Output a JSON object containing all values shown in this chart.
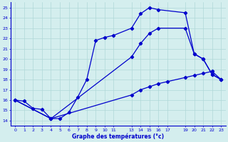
{
  "xlabel": "Graphe des températures (°c)",
  "bg_color": "#d4eeee",
  "line_color": "#0000cc",
  "grid_color": "#b0d8d8",
  "xlim": [
    -0.5,
    23.5
  ],
  "ylim": [
    13.5,
    25.5
  ],
  "yticks": [
    14,
    15,
    16,
    17,
    18,
    19,
    20,
    21,
    22,
    23,
    24,
    25
  ],
  "xtick_positions": [
    0,
    1,
    2,
    3,
    4,
    5,
    6,
    7,
    8,
    9,
    10,
    11,
    13,
    14,
    15,
    16,
    17,
    19,
    20,
    21,
    22,
    23
  ],
  "xtick_labels": [
    "0",
    "1",
    "2",
    "3",
    "4",
    "5",
    "6",
    "7",
    "8",
    "9",
    "10",
    "11",
    "13",
    "14",
    "15",
    "16",
    "17",
    "19",
    "20",
    "21",
    "22",
    "23"
  ],
  "curve1_x": [
    0,
    1,
    2,
    3,
    4,
    5,
    6,
    7,
    8,
    9,
    10,
    11,
    13,
    14,
    15,
    16,
    19,
    20,
    21,
    22,
    23
  ],
  "curve1_y": [
    16.0,
    15.9,
    15.2,
    15.1,
    14.2,
    14.2,
    14.8,
    16.3,
    18.0,
    21.8,
    22.1,
    22.3,
    23.0,
    24.4,
    25.0,
    24.8,
    24.5,
    20.5,
    20.0,
    18.5,
    18.0
  ],
  "curve2_x": [
    0,
    4,
    13,
    14,
    15,
    16,
    19,
    20,
    21,
    22,
    23
  ],
  "curve2_y": [
    16.0,
    14.2,
    20.2,
    21.5,
    22.5,
    23.0,
    23.0,
    20.5,
    20.0,
    18.5,
    18.0
  ],
  "curve3_x": [
    0,
    4,
    13,
    14,
    15,
    16,
    17,
    19,
    20,
    21,
    22,
    23
  ],
  "curve3_y": [
    16.0,
    14.2,
    16.5,
    17.0,
    17.3,
    17.6,
    17.8,
    18.2,
    18.4,
    18.6,
    18.8,
    18.0
  ]
}
